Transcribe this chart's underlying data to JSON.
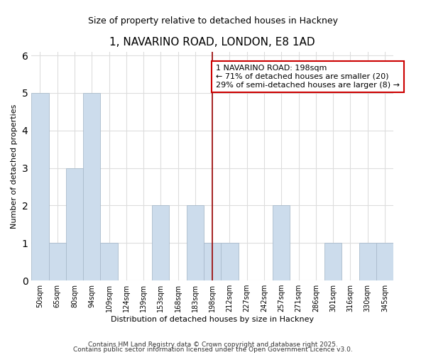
{
  "title": "1, NAVARINO ROAD, LONDON, E8 1AD",
  "subtitle": "Size of property relative to detached houses in Hackney",
  "xlabel": "Distribution of detached houses by size in Hackney",
  "ylabel": "Number of detached properties",
  "categories": [
    "50sqm",
    "65sqm",
    "80sqm",
    "94sqm",
    "109sqm",
    "124sqm",
    "139sqm",
    "153sqm",
    "168sqm",
    "183sqm",
    "198sqm",
    "212sqm",
    "227sqm",
    "242sqm",
    "257sqm",
    "271sqm",
    "286sqm",
    "301sqm",
    "316sqm",
    "330sqm",
    "345sqm"
  ],
  "values": [
    5,
    1,
    3,
    5,
    1,
    0,
    0,
    2,
    0,
    2,
    1,
    1,
    0,
    0,
    2,
    0,
    0,
    1,
    0,
    1,
    1
  ],
  "bar_color": "#ccdcec",
  "bar_edge_color": "#aabbcc",
  "highlight_index": 10,
  "highlight_line_color": "#990000",
  "annotation_text": "1 NAVARINO ROAD: 198sqm\n← 71% of detached houses are smaller (20)\n29% of semi-detached houses are larger (8) →",
  "annotation_box_color": "#ffffff",
  "annotation_box_edge_color": "#cc0000",
  "ylim": [
    0,
    6
  ],
  "yticks": [
    0,
    1,
    2,
    3,
    4,
    5,
    6
  ],
  "plot_bg_color": "#ffffff",
  "fig_bg_color": "#ffffff",
  "grid_color": "#dddddd",
  "footer_line1": "Contains HM Land Registry data © Crown copyright and database right 2025.",
  "footer_line2": "Contains public sector information licensed under the Open Government Licence v3.0."
}
